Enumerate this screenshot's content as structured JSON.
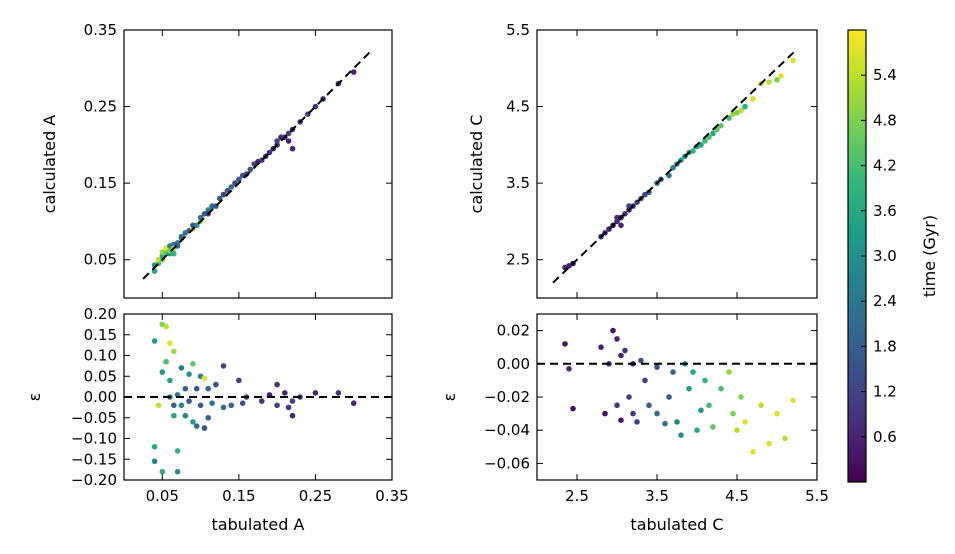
{
  "chart_data": [
    {
      "id": "A_top",
      "type": "scatter",
      "xlabel": "",
      "ylabel": "calculated A",
      "xlim": [
        0.0,
        0.35
      ],
      "ylim": [
        0.0,
        0.35
      ],
      "xticks": [],
      "yticks": [
        "0.05",
        "0.15",
        "0.25",
        "0.35"
      ],
      "reference_line": {
        "style": "dashed",
        "points": [
          [
            0.025,
            0.025
          ],
          [
            0.325,
            0.325
          ]
        ]
      },
      "points": [
        [
          0.04,
          0.035,
          3.6
        ],
        [
          0.04,
          0.043,
          3.0
        ],
        [
          0.045,
          0.045,
          4.2
        ],
        [
          0.045,
          0.05,
          5.4
        ],
        [
          0.05,
          0.05,
          4.8
        ],
        [
          0.05,
          0.055,
          3.6
        ],
        [
          0.05,
          0.06,
          5.1
        ],
        [
          0.055,
          0.06,
          4.5
        ],
        [
          0.055,
          0.065,
          5.7
        ],
        [
          0.06,
          0.058,
          3.3
        ],
        [
          0.06,
          0.062,
          4.8
        ],
        [
          0.06,
          0.068,
          2.7
        ],
        [
          0.065,
          0.07,
          2.1
        ],
        [
          0.065,
          0.065,
          5.4
        ],
        [
          0.065,
          0.058,
          3.9
        ],
        [
          0.07,
          0.072,
          2.4
        ],
        [
          0.07,
          0.068,
          1.8
        ],
        [
          0.075,
          0.078,
          3.0
        ],
        [
          0.075,
          0.08,
          2.1
        ],
        [
          0.08,
          0.085,
          2.4
        ],
        [
          0.085,
          0.088,
          1.8
        ],
        [
          0.09,
          0.09,
          5.7
        ],
        [
          0.09,
          0.095,
          1.5
        ],
        [
          0.095,
          0.095,
          3.0
        ],
        [
          0.1,
          0.1,
          5.1
        ],
        [
          0.1,
          0.105,
          2.1
        ],
        [
          0.105,
          0.11,
          1.8
        ],
        [
          0.11,
          0.115,
          2.7
        ],
        [
          0.11,
          0.11,
          1.2
        ],
        [
          0.115,
          0.12,
          2.1
        ],
        [
          0.12,
          0.12,
          1.5
        ],
        [
          0.125,
          0.13,
          1.8
        ],
        [
          0.13,
          0.135,
          1.2
        ],
        [
          0.135,
          0.14,
          1.5
        ],
        [
          0.14,
          0.145,
          2.1
        ],
        [
          0.145,
          0.15,
          1.2
        ],
        [
          0.15,
          0.155,
          1.8
        ],
        [
          0.155,
          0.16,
          1.5
        ],
        [
          0.16,
          0.162,
          1.2
        ],
        [
          0.165,
          0.168,
          1.5
        ],
        [
          0.17,
          0.175,
          1.2
        ],
        [
          0.175,
          0.178,
          0.6
        ],
        [
          0.18,
          0.18,
          0.9
        ],
        [
          0.185,
          0.185,
          1.2
        ],
        [
          0.19,
          0.19,
          0.9
        ],
        [
          0.195,
          0.195,
          0.6
        ],
        [
          0.2,
          0.2,
          0.9
        ],
        [
          0.2,
          0.205,
          1.2
        ],
        [
          0.205,
          0.21,
          0.6
        ],
        [
          0.21,
          0.21,
          0.9
        ],
        [
          0.215,
          0.215,
          1.2
        ],
        [
          0.215,
          0.205,
          0.6
        ],
        [
          0.22,
          0.22,
          0.9
        ],
        [
          0.22,
          0.195,
          0.6
        ],
        [
          0.23,
          0.23,
          0.9
        ],
        [
          0.24,
          0.24,
          1.2
        ],
        [
          0.25,
          0.25,
          0.9
        ],
        [
          0.26,
          0.26,
          0.6
        ],
        [
          0.28,
          0.28,
          0.9
        ],
        [
          0.3,
          0.295,
          0.6
        ]
      ]
    },
    {
      "id": "A_bottom",
      "type": "scatter",
      "xlabel": "tabulated A",
      "ylabel": "ε",
      "xlim": [
        0.0,
        0.35
      ],
      "ylim": [
        -0.2,
        0.2
      ],
      "xticks": [
        "0.05",
        "0.15",
        "0.25",
        "0.35"
      ],
      "yticks": [
        "−0.20",
        "−0.15",
        "−0.10",
        "−0.05",
        "0.00",
        "0.05",
        "0.10",
        "0.15",
        "0.20"
      ],
      "reference_line": {
        "style": "dashed",
        "points": [
          [
            0.0,
            0.0
          ],
          [
            0.35,
            0.0
          ]
        ]
      },
      "points": [
        [
          0.04,
          0.135,
          3.3
        ],
        [
          0.04,
          -0.12,
          3.6
        ],
        [
          0.04,
          -0.155,
          2.7
        ],
        [
          0.045,
          -0.02,
          5.4
        ],
        [
          0.05,
          0.175,
          4.8
        ],
        [
          0.05,
          0.06,
          3.3
        ],
        [
          0.05,
          -0.18,
          3.6
        ],
        [
          0.055,
          0.17,
          5.4
        ],
        [
          0.055,
          0.085,
          4.2
        ],
        [
          0.06,
          0.13,
          5.7
        ],
        [
          0.06,
          0.0,
          2.1
        ],
        [
          0.06,
          0.04,
          3.6
        ],
        [
          0.065,
          0.11,
          5.1
        ],
        [
          0.065,
          -0.02,
          1.8
        ],
        [
          0.065,
          -0.045,
          3.6
        ],
        [
          0.07,
          -0.18,
          3.0
        ],
        [
          0.07,
          0.005,
          2.4
        ],
        [
          0.07,
          -0.13,
          3.9
        ],
        [
          0.075,
          0.07,
          2.7
        ],
        [
          0.075,
          -0.02,
          3.0
        ],
        [
          0.08,
          0.02,
          2.1
        ],
        [
          0.08,
          -0.045,
          2.7
        ],
        [
          0.085,
          0.055,
          3.0
        ],
        [
          0.085,
          -0.01,
          1.8
        ],
        [
          0.09,
          0.08,
          4.5
        ],
        [
          0.09,
          -0.06,
          3.3
        ],
        [
          0.095,
          0.02,
          1.5
        ],
        [
          0.095,
          -0.07,
          2.1
        ],
        [
          0.1,
          0.05,
          2.7
        ],
        [
          0.1,
          -0.02,
          1.8
        ],
        [
          0.105,
          0.045,
          5.7
        ],
        [
          0.105,
          -0.075,
          1.5
        ],
        [
          0.11,
          0.02,
          2.1
        ],
        [
          0.11,
          -0.05,
          1.8
        ],
        [
          0.115,
          -0.015,
          2.4
        ],
        [
          0.12,
          0.03,
          1.5
        ],
        [
          0.13,
          0.075,
          1.2
        ],
        [
          0.13,
          -0.025,
          2.1
        ],
        [
          0.14,
          -0.02,
          1.8
        ],
        [
          0.15,
          0.04,
          1.2
        ],
        [
          0.155,
          -0.015,
          1.5
        ],
        [
          0.16,
          0.0,
          1.2
        ],
        [
          0.18,
          -0.01,
          0.9
        ],
        [
          0.19,
          0.005,
          0.6
        ],
        [
          0.2,
          0.03,
          0.9
        ],
        [
          0.2,
          -0.02,
          1.2
        ],
        [
          0.21,
          0.01,
          0.6
        ],
        [
          0.215,
          -0.025,
          0.9
        ],
        [
          0.22,
          -0.045,
          0.6
        ],
        [
          0.22,
          -0.01,
          1.2
        ],
        [
          0.23,
          0.0,
          0.9
        ],
        [
          0.25,
          0.01,
          0.6
        ],
        [
          0.28,
          0.01,
          0.9
        ],
        [
          0.3,
          -0.015,
          0.6
        ]
      ]
    },
    {
      "id": "C_top",
      "type": "scatter",
      "xlabel": "",
      "ylabel": "calculated C",
      "xlim": [
        2.0,
        5.5
      ],
      "ylim": [
        2.0,
        5.5
      ],
      "xticks": [],
      "yticks": [
        "2.5",
        "3.5",
        "4.5",
        "5.5"
      ],
      "reference_line": {
        "style": "dashed",
        "points": [
          [
            2.2,
            2.2
          ],
          [
            5.25,
            5.25
          ]
        ]
      },
      "points": [
        [
          2.35,
          2.4,
          0.6
        ],
        [
          2.4,
          2.42,
          0.6
        ],
        [
          2.45,
          2.45,
          0.3
        ],
        [
          2.8,
          2.8,
          0.9
        ],
        [
          2.85,
          2.85,
          0.6
        ],
        [
          2.9,
          2.9,
          0.6
        ],
        [
          2.95,
          2.95,
          0.3
        ],
        [
          3.0,
          3.0,
          0.6
        ],
        [
          3.0,
          3.05,
          0.9
        ],
        [
          3.05,
          3.05,
          0.3
        ],
        [
          3.05,
          2.95,
          0.6
        ],
        [
          3.1,
          3.1,
          0.9
        ],
        [
          3.15,
          3.15,
          0.6
        ],
        [
          3.15,
          3.2,
          1.2
        ],
        [
          3.2,
          3.2,
          0.9
        ],
        [
          3.25,
          3.25,
          1.2
        ],
        [
          3.3,
          3.3,
          1.5
        ],
        [
          3.35,
          3.35,
          1.2
        ],
        [
          3.4,
          3.38,
          1.8
        ],
        [
          3.5,
          3.5,
          2.1
        ],
        [
          3.55,
          3.55,
          1.8
        ],
        [
          3.65,
          3.6,
          2.4
        ],
        [
          3.7,
          3.7,
          2.7
        ],
        [
          3.75,
          3.75,
          3.0
        ],
        [
          3.8,
          3.8,
          3.3
        ],
        [
          3.85,
          3.85,
          3.0
        ],
        [
          3.9,
          3.9,
          3.6
        ],
        [
          3.95,
          3.92,
          3.9
        ],
        [
          4.0,
          3.98,
          3.3
        ],
        [
          4.05,
          4.0,
          3.6
        ],
        [
          4.1,
          4.05,
          4.2
        ],
        [
          4.15,
          4.1,
          4.2
        ],
        [
          4.2,
          4.15,
          3.6
        ],
        [
          4.25,
          4.2,
          4.5
        ],
        [
          4.3,
          4.25,
          4.5
        ],
        [
          4.4,
          4.35,
          4.2
        ],
        [
          4.45,
          4.4,
          5.1
        ],
        [
          4.5,
          4.42,
          4.8
        ],
        [
          4.55,
          4.45,
          5.4
        ],
        [
          4.6,
          4.5,
          3.9
        ],
        [
          4.7,
          4.6,
          5.7
        ],
        [
          4.8,
          4.8,
          5.7
        ],
        [
          4.9,
          4.82,
          5.4
        ],
        [
          5.0,
          4.85,
          4.8
        ],
        [
          5.05,
          4.9,
          5.7
        ],
        [
          5.2,
          5.1,
          5.7
        ]
      ]
    },
    {
      "id": "C_bottom",
      "type": "scatter",
      "xlabel": "tabulated C",
      "ylabel": "ε",
      "xlim": [
        2.0,
        5.5
      ],
      "ylim": [
        -0.07,
        0.03
      ],
      "xticks": [
        "2.5",
        "3.5",
        "4.5",
        "5.5"
      ],
      "yticks": [
        "−0.06",
        "−0.04",
        "−0.02",
        "0.00",
        "0.02"
      ],
      "reference_line": {
        "style": "dashed",
        "points": [
          [
            2.0,
            0.0
          ],
          [
            5.5,
            0.0
          ]
        ]
      },
      "points": [
        [
          2.35,
          0.012,
          0.3
        ],
        [
          2.4,
          -0.003,
          0.6
        ],
        [
          2.45,
          -0.027,
          0.3
        ],
        [
          2.8,
          0.01,
          0.6
        ],
        [
          2.85,
          -0.03,
          0.3
        ],
        [
          2.9,
          0.0,
          0.9
        ],
        [
          2.95,
          0.02,
          0.3
        ],
        [
          3.0,
          0.015,
          0.6
        ],
        [
          3.0,
          -0.025,
          0.9
        ],
        [
          3.05,
          0.005,
          0.6
        ],
        [
          3.05,
          -0.034,
          0.3
        ],
        [
          3.1,
          0.008,
          0.9
        ],
        [
          3.15,
          -0.02,
          1.2
        ],
        [
          3.2,
          0.0,
          0.6
        ],
        [
          3.2,
          -0.03,
          0.9
        ],
        [
          3.25,
          -0.035,
          1.2
        ],
        [
          3.3,
          0.002,
          1.5
        ],
        [
          3.35,
          -0.01,
          1.2
        ],
        [
          3.4,
          -0.025,
          1.8
        ],
        [
          3.5,
          -0.002,
          1.5
        ],
        [
          3.5,
          -0.03,
          2.1
        ],
        [
          3.6,
          -0.036,
          2.4
        ],
        [
          3.65,
          -0.02,
          1.8
        ],
        [
          3.7,
          -0.005,
          2.1
        ],
        [
          3.75,
          -0.035,
          2.7
        ],
        [
          3.8,
          -0.043,
          3.0
        ],
        [
          3.85,
          0.0,
          3.0
        ],
        [
          3.9,
          -0.015,
          3.3
        ],
        [
          3.95,
          -0.005,
          3.6
        ],
        [
          4.0,
          -0.04,
          3.6
        ],
        [
          4.05,
          -0.028,
          3.3
        ],
        [
          4.1,
          -0.01,
          3.9
        ],
        [
          4.15,
          -0.025,
          4.2
        ],
        [
          4.2,
          -0.038,
          4.5
        ],
        [
          4.3,
          -0.015,
          4.2
        ],
        [
          4.4,
          -0.005,
          5.1
        ],
        [
          4.45,
          -0.03,
          4.8
        ],
        [
          4.5,
          -0.04,
          5.4
        ],
        [
          4.55,
          -0.02,
          4.8
        ],
        [
          4.6,
          -0.035,
          5.7
        ],
        [
          4.7,
          -0.053,
          5.7
        ],
        [
          4.8,
          -0.025,
          5.4
        ],
        [
          4.9,
          -0.048,
          5.7
        ],
        [
          5.0,
          -0.03,
          5.7
        ],
        [
          5.1,
          -0.045,
          5.4
        ],
        [
          5.2,
          -0.022,
          5.7
        ]
      ]
    },
    {
      "id": "colorbar",
      "type": "colorbar",
      "label": "time (Gyr)",
      "colormap": "viridis",
      "range": [
        0.0,
        6.0
      ],
      "ticks": [
        "0.6",
        "1.2",
        "1.8",
        "2.4",
        "3.0",
        "3.6",
        "4.2",
        "4.8",
        "5.4"
      ],
      "tick_values": [
        0.6,
        1.2,
        1.8,
        2.4,
        3.0,
        3.6,
        4.2,
        4.8,
        5.4
      ],
      "stops": [
        "#440154",
        "#482878",
        "#3e4a89",
        "#31688e",
        "#26828e",
        "#1f9e89",
        "#35b779",
        "#6ece58",
        "#b5de2b",
        "#fde725"
      ]
    }
  ]
}
